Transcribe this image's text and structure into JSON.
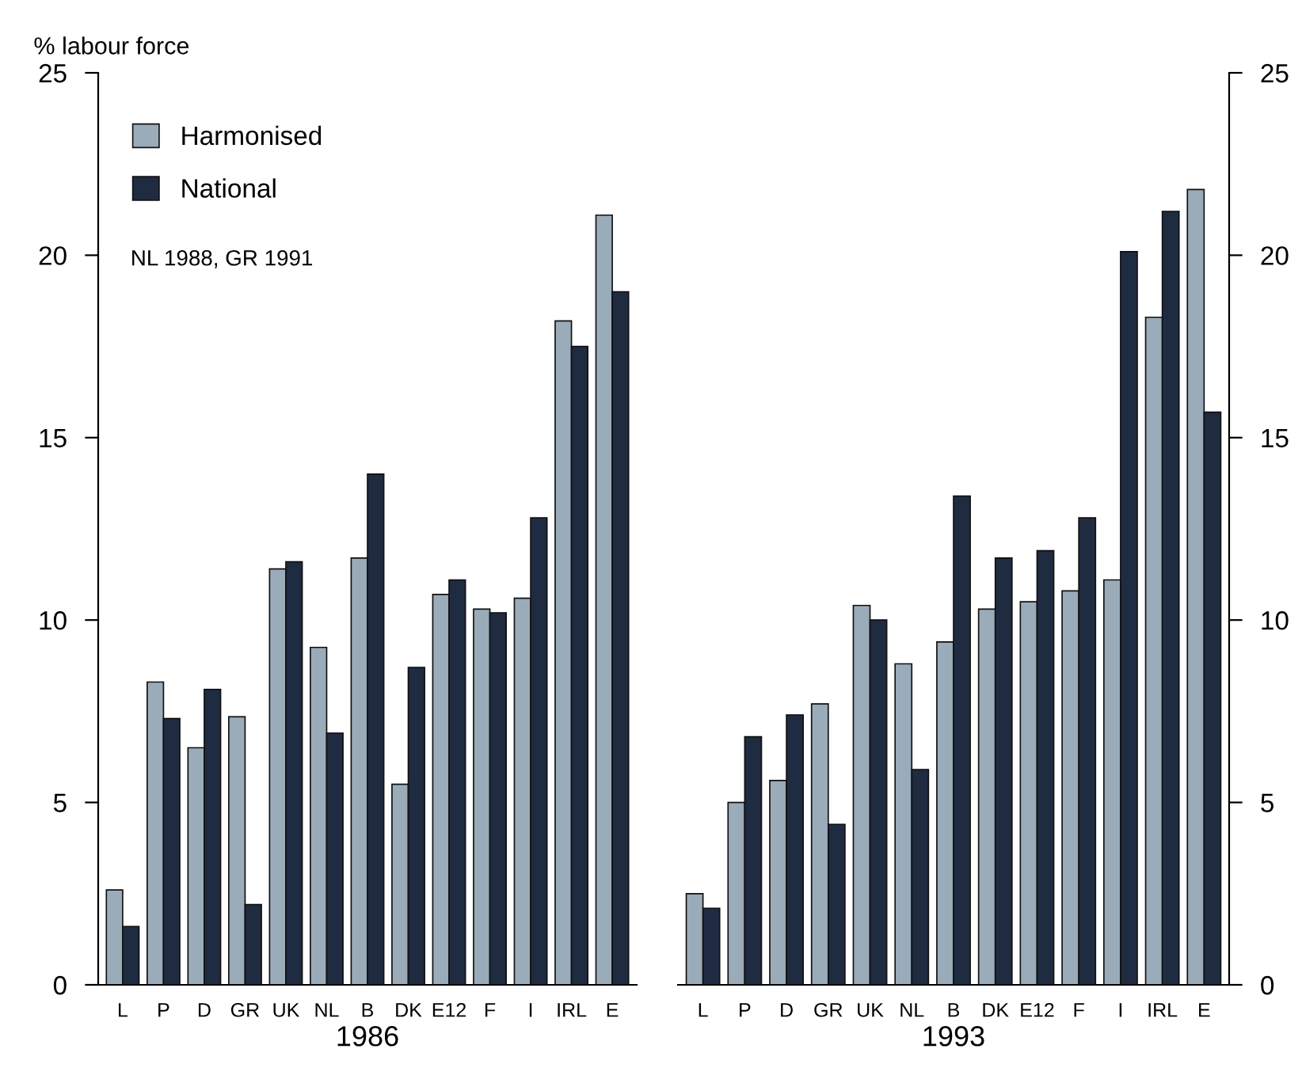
{
  "chart_data": [
    {
      "type": "bar",
      "xlabel": "1986",
      "ylabel": "% labour force",
      "categories": [
        "L",
        "P",
        "D",
        "GR",
        "UK",
        "NL",
        "B",
        "DK",
        "E12",
        "F",
        "I",
        "IRL",
        "E"
      ],
      "ylim": [
        0,
        25
      ],
      "yticks": [
        0,
        5,
        10,
        15,
        20,
        25
      ],
      "legend": "top left",
      "grid": false,
      "annotations": [
        "NL 1988, GR 1991"
      ],
      "series": [
        {
          "name": "Harmonised",
          "color": "#9aabb9",
          "values": [
            2.6,
            8.3,
            6.5,
            7.35,
            11.4,
            9.25,
            11.7,
            5.5,
            10.7,
            10.3,
            10.6,
            18.2,
            21.1
          ]
        },
        {
          "name": "National",
          "color": "#1f2b40",
          "values": [
            1.6,
            7.3,
            8.1,
            2.2,
            11.6,
            6.9,
            14.0,
            8.7,
            11.1,
            10.2,
            12.8,
            17.5,
            19.0
          ]
        }
      ]
    },
    {
      "type": "bar",
      "xlabel": "1993",
      "categories": [
        "L",
        "P",
        "D",
        "GR",
        "UK",
        "NL",
        "B",
        "DK",
        "E12",
        "F",
        "I",
        "IRL",
        "E"
      ],
      "ylim": [
        0,
        25
      ],
      "yticks": [
        0,
        5,
        10,
        15,
        20,
        25
      ],
      "legend": false,
      "grid": false,
      "series": [
        {
          "color": "#9aabb9",
          "values": [
            2.5,
            5.0,
            5.6,
            7.7,
            10.4,
            8.8,
            9.4,
            10.3,
            10.5,
            10.8,
            11.1,
            18.3,
            21.8
          ]
        },
        {
          "color": "#1f2b40",
          "values": [
            2.1,
            6.8,
            7.4,
            4.4,
            10.0,
            5.9,
            13.4,
            11.7,
            11.9,
            12.8,
            20.1,
            21.2,
            15.7
          ]
        }
      ]
    }
  ]
}
